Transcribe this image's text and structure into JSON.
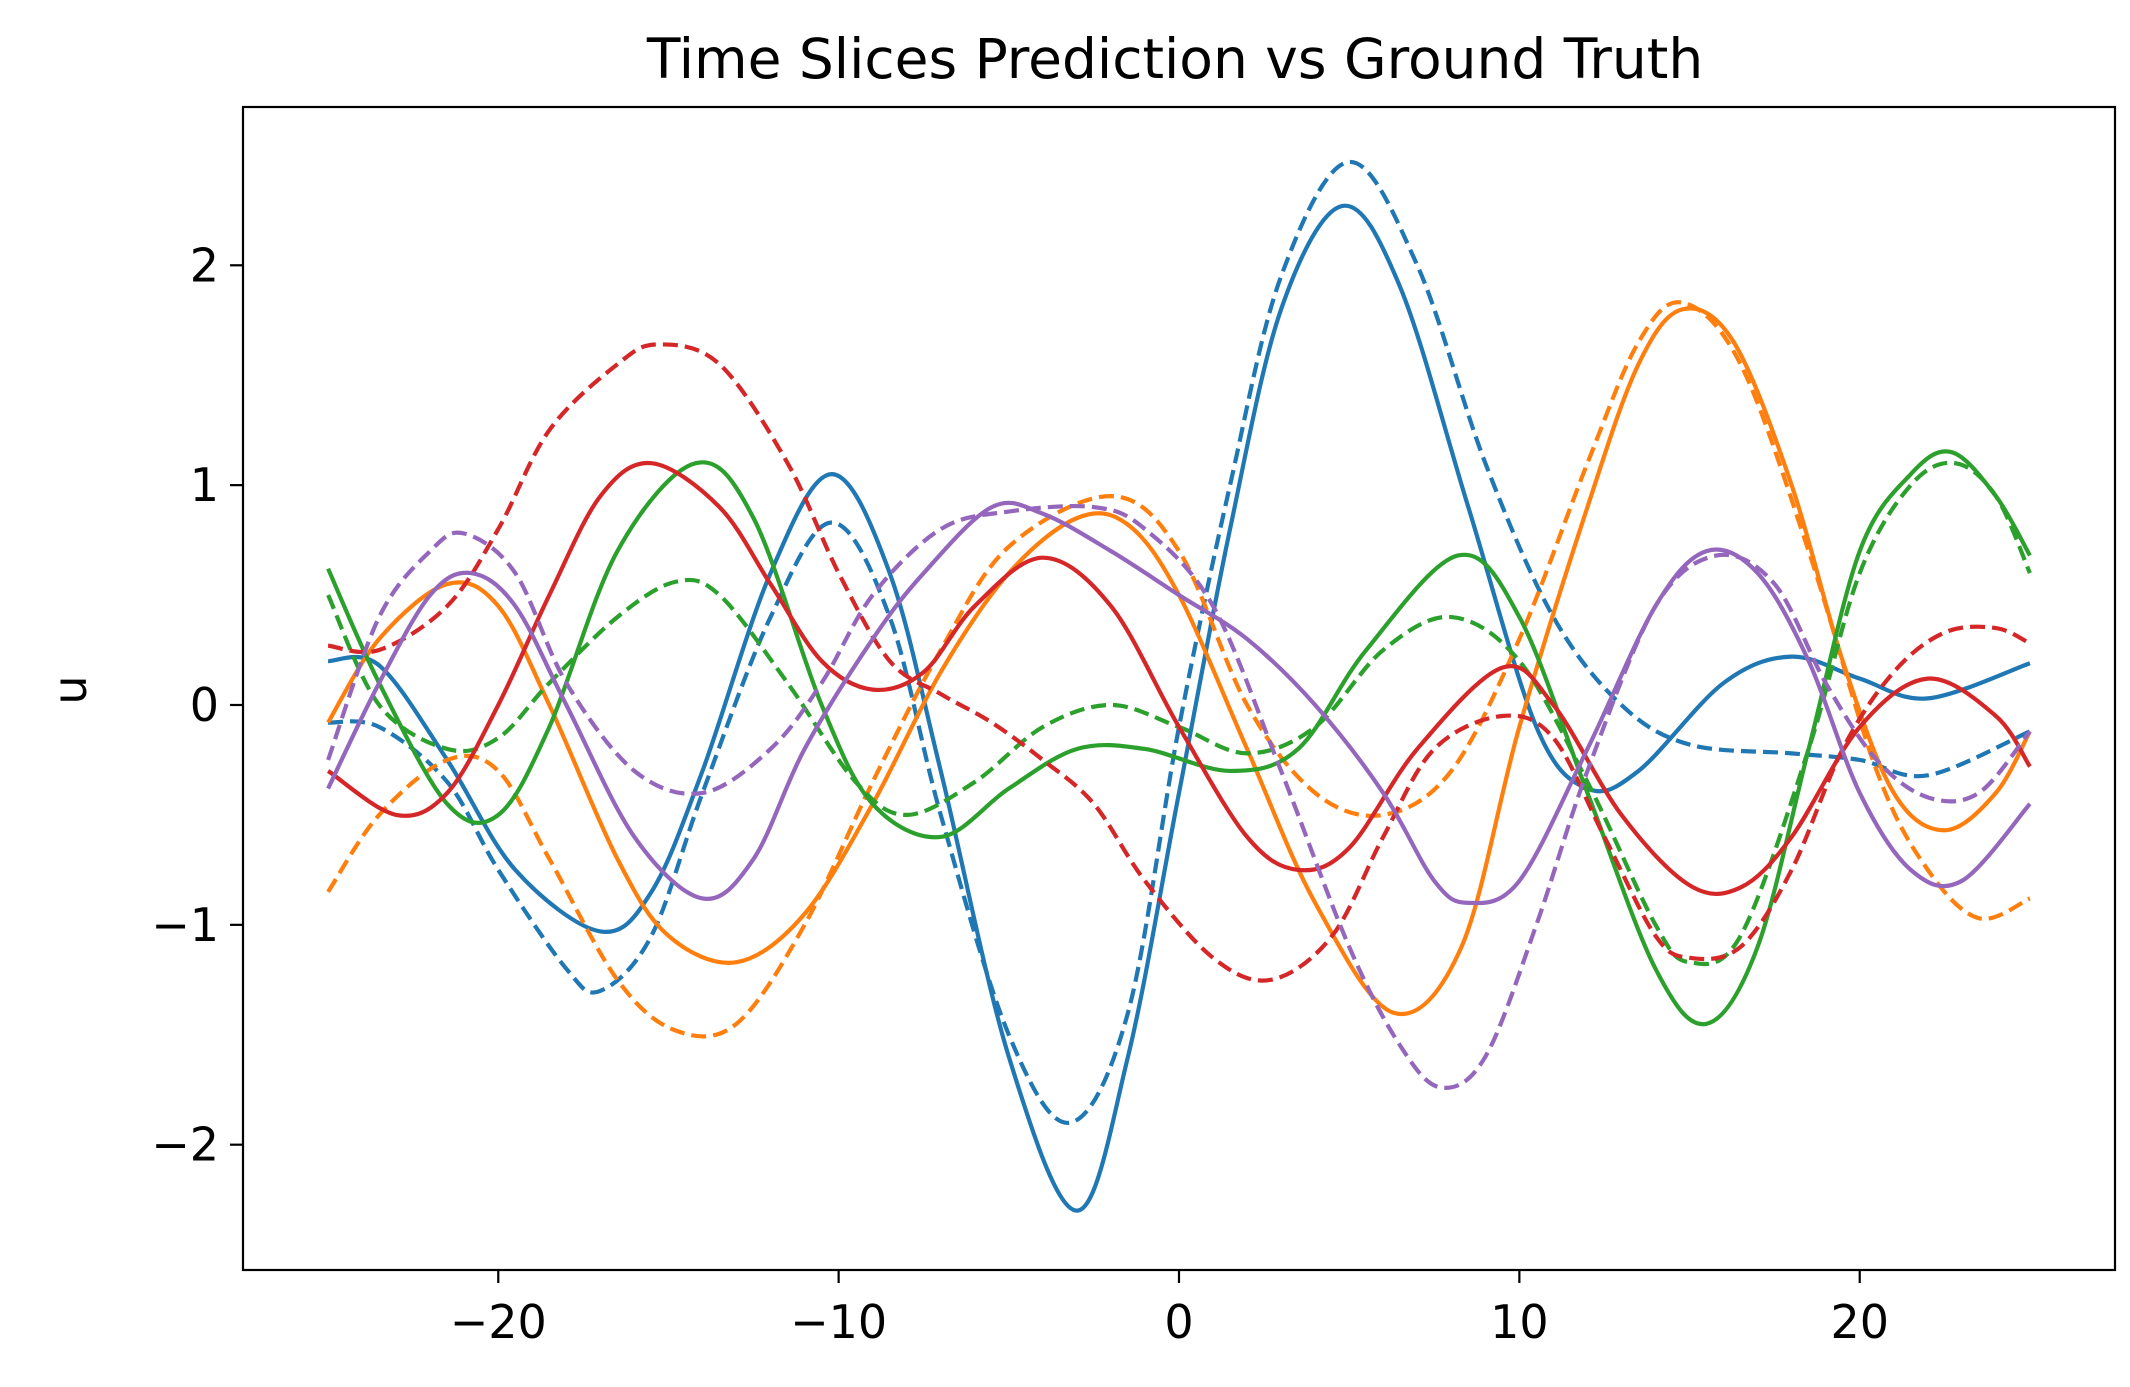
{
  "chart_data": {
    "type": "line",
    "title": "Time Slices Prediction vs Ground Truth",
    "xlabel": "",
    "ylabel": "u",
    "xlim": [
      -27.5,
      27.5
    ],
    "ylim": [
      -2.57,
      2.72
    ],
    "xticks": [
      -20,
      -10,
      0,
      10,
      20
    ],
    "yticks": [
      -2,
      -1,
      0,
      1,
      2
    ],
    "xtick_labels": [
      "−20",
      "−10",
      "0",
      "10",
      "20"
    ],
    "ytick_labels": [
      "−2",
      "−1",
      "0",
      "1",
      "2"
    ],
    "grid": false,
    "legend": "none",
    "series": [
      {
        "color": "#1f77b4",
        "style": "solid",
        "points": [
          [
            -25,
            0.2
          ],
          [
            -23.5,
            0.18
          ],
          [
            -21.5,
            -0.25
          ],
          [
            -19.5,
            -0.75
          ],
          [
            -17,
            -1.03
          ],
          [
            -15.5,
            -0.85
          ],
          [
            -14,
            -0.3
          ],
          [
            -12,
            0.6
          ],
          [
            -10.2,
            1.05
          ],
          [
            -8.5,
            0.6
          ],
          [
            -7,
            -0.3
          ],
          [
            -5,
            -1.6
          ],
          [
            -3,
            -2.3
          ],
          [
            -1.5,
            -1.6
          ],
          [
            0,
            -0.4
          ],
          [
            1.5,
            0.8
          ],
          [
            3,
            1.8
          ],
          [
            4.8,
            2.27
          ],
          [
            6.5,
            1.9
          ],
          [
            8.5,
            0.9
          ],
          [
            10.5,
            -0.1
          ],
          [
            12,
            -0.38
          ],
          [
            13.5,
            -0.3
          ],
          [
            16,
            0.1
          ],
          [
            18,
            0.22
          ],
          [
            20,
            0.12
          ],
          [
            22,
            0.03
          ],
          [
            25,
            0.19
          ]
        ]
      },
      {
        "color": "#1f77b4",
        "style": "dashed",
        "points": [
          [
            -25,
            -0.08
          ],
          [
            -23.5,
            -0.1
          ],
          [
            -21.5,
            -0.35
          ],
          [
            -20,
            -0.75
          ],
          [
            -18,
            -1.2
          ],
          [
            -17,
            -1.3
          ],
          [
            -15.5,
            -1.05
          ],
          [
            -14,
            -0.4
          ],
          [
            -12,
            0.4
          ],
          [
            -10.2,
            0.83
          ],
          [
            -8.5,
            0.4
          ],
          [
            -7,
            -0.5
          ],
          [
            -5,
            -1.5
          ],
          [
            -3.2,
            -1.9
          ],
          [
            -1.5,
            -1.4
          ],
          [
            0,
            -0.1
          ],
          [
            1.5,
            1.0
          ],
          [
            3,
            1.95
          ],
          [
            5,
            2.47
          ],
          [
            7,
            2.0
          ],
          [
            9,
            1.1
          ],
          [
            11,
            0.4
          ],
          [
            13,
            0.0
          ],
          [
            15,
            -0.18
          ],
          [
            18,
            -0.22
          ],
          [
            20,
            -0.25
          ],
          [
            22,
            -0.32
          ],
          [
            25,
            -0.12
          ]
        ]
      },
      {
        "color": "#ff7f0e",
        "style": "solid",
        "points": [
          [
            -25,
            -0.08
          ],
          [
            -23.5,
            0.3
          ],
          [
            -21.5,
            0.55
          ],
          [
            -20,
            0.45
          ],
          [
            -18.5,
            0.0
          ],
          [
            -16.5,
            -0.7
          ],
          [
            -15,
            -1.05
          ],
          [
            -13,
            -1.17
          ],
          [
            -11,
            -0.95
          ],
          [
            -9,
            -0.45
          ],
          [
            -7,
            0.15
          ],
          [
            -5,
            0.6
          ],
          [
            -3,
            0.85
          ],
          [
            -1.5,
            0.82
          ],
          [
            0,
            0.5
          ],
          [
            2,
            -0.2
          ],
          [
            4,
            -0.9
          ],
          [
            6.3,
            -1.4
          ],
          [
            8.3,
            -1.1
          ],
          [
            10,
            -0.1
          ],
          [
            12,
            0.9
          ],
          [
            13.5,
            1.55
          ],
          [
            14.8,
            1.8
          ],
          [
            16.3,
            1.65
          ],
          [
            18,
            1.0
          ],
          [
            19.5,
            0.2
          ],
          [
            21,
            -0.4
          ],
          [
            22.5,
            -0.57
          ],
          [
            24,
            -0.4
          ],
          [
            25,
            -0.12
          ]
        ]
      },
      {
        "color": "#ff7f0e",
        "style": "dashed",
        "points": [
          [
            -25,
            -0.85
          ],
          [
            -23.5,
            -0.5
          ],
          [
            -21.5,
            -0.25
          ],
          [
            -20,
            -0.3
          ],
          [
            -18.5,
            -0.7
          ],
          [
            -16.5,
            -1.25
          ],
          [
            -14.8,
            -1.48
          ],
          [
            -13,
            -1.45
          ],
          [
            -11,
            -1.0
          ],
          [
            -9,
            -0.35
          ],
          [
            -7,
            0.25
          ],
          [
            -5,
            0.72
          ],
          [
            -2,
            0.95
          ],
          [
            0,
            0.7
          ],
          [
            2,
            0.0
          ],
          [
            4,
            -0.4
          ],
          [
            6,
            -0.5
          ],
          [
            8,
            -0.3
          ],
          [
            10,
            0.3
          ],
          [
            12,
            1.1
          ],
          [
            13.5,
            1.65
          ],
          [
            14.8,
            1.83
          ],
          [
            16.5,
            1.55
          ],
          [
            18.5,
            0.7
          ],
          [
            20.5,
            -0.3
          ],
          [
            22,
            -0.75
          ],
          [
            23.5,
            -0.97
          ],
          [
            25,
            -0.88
          ]
        ]
      },
      {
        "color": "#2ca02c",
        "style": "solid",
        "points": [
          [
            -25,
            0.62
          ],
          [
            -23.5,
            0.1
          ],
          [
            -21.5,
            -0.45
          ],
          [
            -20,
            -0.5
          ],
          [
            -18.5,
            -0.1
          ],
          [
            -16.5,
            0.7
          ],
          [
            -14.2,
            1.1
          ],
          [
            -12.5,
            0.85
          ],
          [
            -10.5,
            0.0
          ],
          [
            -9,
            -0.45
          ],
          [
            -7,
            -0.6
          ],
          [
            -5,
            -0.38
          ],
          [
            -3,
            -0.2
          ],
          [
            -1,
            -0.2
          ],
          [
            1.5,
            -0.3
          ],
          [
            3.5,
            -0.2
          ],
          [
            5.5,
            0.25
          ],
          [
            8.2,
            0.68
          ],
          [
            10,
            0.4
          ],
          [
            12,
            -0.4
          ],
          [
            14,
            -1.2
          ],
          [
            15.5,
            -1.45
          ],
          [
            17,
            -1.1
          ],
          [
            18.5,
            -0.2
          ],
          [
            20,
            0.7
          ],
          [
            21.5,
            1.05
          ],
          [
            22.7,
            1.15
          ],
          [
            24,
            0.95
          ],
          [
            25,
            0.68
          ]
        ]
      },
      {
        "color": "#2ca02c",
        "style": "dashed",
        "points": [
          [
            -25,
            0.5
          ],
          [
            -23.5,
            0.0
          ],
          [
            -21.5,
            -0.2
          ],
          [
            -20,
            -0.15
          ],
          [
            -18.5,
            0.1
          ],
          [
            -16.5,
            0.4
          ],
          [
            -14.8,
            0.56
          ],
          [
            -13.5,
            0.5
          ],
          [
            -11.5,
            0.1
          ],
          [
            -9.5,
            -0.35
          ],
          [
            -8,
            -0.5
          ],
          [
            -6,
            -0.35
          ],
          [
            -4,
            -0.1
          ],
          [
            -2,
            0.0
          ],
          [
            0,
            -0.1
          ],
          [
            2,
            -0.22
          ],
          [
            4,
            -0.1
          ],
          [
            6,
            0.25
          ],
          [
            8,
            0.4
          ],
          [
            10,
            0.2
          ],
          [
            12,
            -0.35
          ],
          [
            14,
            -1.0
          ],
          [
            15,
            -1.17
          ],
          [
            16.5,
            -1.05
          ],
          [
            18.5,
            -0.2
          ],
          [
            20,
            0.6
          ],
          [
            21.5,
            1.0
          ],
          [
            22.8,
            1.1
          ],
          [
            24,
            0.95
          ],
          [
            25,
            0.6
          ]
        ]
      },
      {
        "color": "#d62728",
        "style": "solid",
        "points": [
          [
            -25,
            -0.3
          ],
          [
            -23,
            -0.5
          ],
          [
            -21.5,
            -0.4
          ],
          [
            -20,
            0.0
          ],
          [
            -18.5,
            0.5
          ],
          [
            -17,
            0.95
          ],
          [
            -15.5,
            1.1
          ],
          [
            -13.5,
            0.9
          ],
          [
            -12,
            0.55
          ],
          [
            -10.5,
            0.2
          ],
          [
            -9,
            0.07
          ],
          [
            -7.5,
            0.15
          ],
          [
            -6,
            0.45
          ],
          [
            -4,
            0.67
          ],
          [
            -2,
            0.45
          ],
          [
            0,
            -0.1
          ],
          [
            2,
            -0.6
          ],
          [
            3.5,
            -0.75
          ],
          [
            5,
            -0.65
          ],
          [
            7,
            -0.2
          ],
          [
            9.5,
            0.17
          ],
          [
            11,
            0.0
          ],
          [
            13,
            -0.5
          ],
          [
            15,
            -0.82
          ],
          [
            16.5,
            -0.83
          ],
          [
            18,
            -0.6
          ],
          [
            20,
            -0.1
          ],
          [
            22,
            0.12
          ],
          [
            24,
            -0.05
          ],
          [
            25,
            -0.28
          ]
        ]
      },
      {
        "color": "#d62728",
        "style": "dashed",
        "points": [
          [
            -25,
            0.27
          ],
          [
            -23.5,
            0.25
          ],
          [
            -21.5,
            0.45
          ],
          [
            -20,
            0.8
          ],
          [
            -18.5,
            1.25
          ],
          [
            -16.5,
            1.55
          ],
          [
            -15.3,
            1.64
          ],
          [
            -13.5,
            1.55
          ],
          [
            -11.5,
            1.1
          ],
          [
            -10,
            0.6
          ],
          [
            -8.5,
            0.2
          ],
          [
            -7,
            0.05
          ],
          [
            -5.5,
            -0.08
          ],
          [
            -4,
            -0.25
          ],
          [
            -2.5,
            -0.45
          ],
          [
            -1,
            -0.8
          ],
          [
            1,
            -1.15
          ],
          [
            2.7,
            -1.25
          ],
          [
            4.5,
            -1.05
          ],
          [
            6,
            -0.6
          ],
          [
            7.5,
            -0.2
          ],
          [
            9.5,
            -0.05
          ],
          [
            11,
            -0.15
          ],
          [
            12.5,
            -0.6
          ],
          [
            14,
            -1.05
          ],
          [
            15,
            -1.15
          ],
          [
            16.5,
            -1.1
          ],
          [
            18,
            -0.75
          ],
          [
            19.5,
            -0.2
          ],
          [
            21,
            0.15
          ],
          [
            22.5,
            0.33
          ],
          [
            24,
            0.35
          ],
          [
            25,
            0.28
          ]
        ]
      },
      {
        "color": "#9467bd",
        "style": "solid",
        "points": [
          [
            -25,
            -0.38
          ],
          [
            -23.5,
            0.1
          ],
          [
            -22,
            0.5
          ],
          [
            -20.8,
            0.6
          ],
          [
            -19.5,
            0.45
          ],
          [
            -18,
            0.0
          ],
          [
            -16,
            -0.6
          ],
          [
            -14,
            -0.88
          ],
          [
            -12.5,
            -0.7
          ],
          [
            -11,
            -0.2
          ],
          [
            -9,
            0.3
          ],
          [
            -7.5,
            0.6
          ],
          [
            -5.5,
            0.9
          ],
          [
            -4,
            0.87
          ],
          [
            -2,
            0.7
          ],
          [
            0,
            0.5
          ],
          [
            2,
            0.3
          ],
          [
            4,
            0.0
          ],
          [
            6,
            -0.4
          ],
          [
            7.5,
            -0.8
          ],
          [
            8.5,
            -0.9
          ],
          [
            10,
            -0.8
          ],
          [
            12,
            -0.2
          ],
          [
            14,
            0.45
          ],
          [
            15.5,
            0.7
          ],
          [
            17,
            0.6
          ],
          [
            18.5,
            0.2
          ],
          [
            20,
            -0.4
          ],
          [
            21.5,
            -0.75
          ],
          [
            23,
            -0.8
          ],
          [
            25,
            -0.45
          ]
        ]
      },
      {
        "color": "#9467bd",
        "style": "dashed",
        "points": [
          [
            -25,
            -0.25
          ],
          [
            -23.5,
            0.4
          ],
          [
            -22,
            0.7
          ],
          [
            -21,
            0.78
          ],
          [
            -19.5,
            0.6
          ],
          [
            -18,
            0.1
          ],
          [
            -16,
            -0.3
          ],
          [
            -14,
            -0.4
          ],
          [
            -12,
            -0.2
          ],
          [
            -10.5,
            0.1
          ],
          [
            -9,
            0.5
          ],
          [
            -7,
            0.8
          ],
          [
            -5,
            0.88
          ],
          [
            -2.5,
            0.9
          ],
          [
            -1,
            0.8
          ],
          [
            1,
            0.45
          ],
          [
            3,
            -0.3
          ],
          [
            5,
            -1.1
          ],
          [
            6.5,
            -1.55
          ],
          [
            7.7,
            -1.74
          ],
          [
            9,
            -1.6
          ],
          [
            10.5,
            -1.0
          ],
          [
            12,
            -0.3
          ],
          [
            14,
            0.45
          ],
          [
            15.8,
            0.68
          ],
          [
            17.5,
            0.55
          ],
          [
            19,
            0.1
          ],
          [
            20.5,
            -0.25
          ],
          [
            22,
            -0.42
          ],
          [
            23.5,
            -0.4
          ],
          [
            25,
            -0.12
          ]
        ]
      }
    ]
  }
}
